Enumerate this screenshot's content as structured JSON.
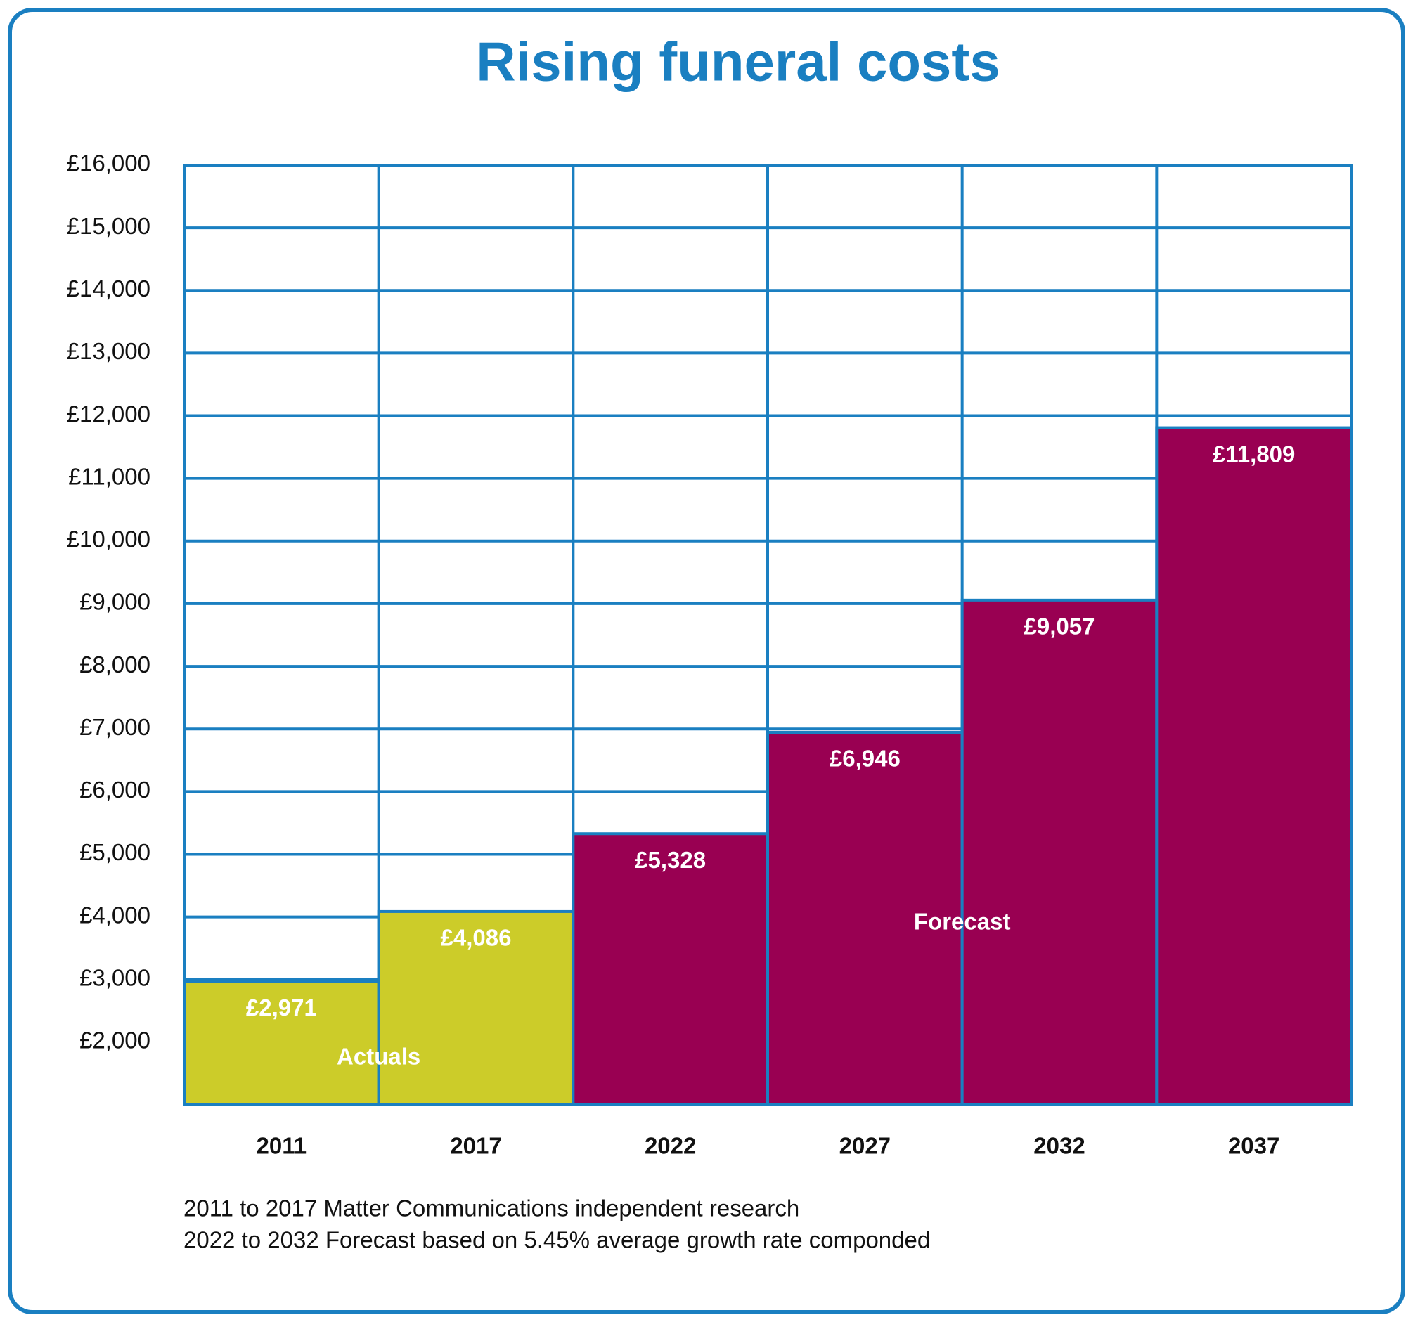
{
  "chart_data": {
    "type": "bar",
    "title": "Rising funeral costs",
    "categories": [
      "2011",
      "2017",
      "2022",
      "2027",
      "2032",
      "2037"
    ],
    "series": [
      {
        "name": "Actuals",
        "color": "#cccc29",
        "values": [
          2971,
          4086,
          null,
          null,
          null,
          null
        ],
        "value_labels": [
          "£2,971",
          "£4,086",
          null,
          null,
          null,
          null
        ]
      },
      {
        "name": "Forecast",
        "color": "#990052",
        "values": [
          null,
          null,
          5328,
          6946,
          9057,
          11809
        ],
        "value_labels": [
          null,
          null,
          "£5,328",
          "£6,946",
          "£9,057",
          "£11,809"
        ]
      }
    ],
    "ylim": [
      1000,
      16000
    ],
    "yticks": [
      {
        "value": 2000,
        "label": "£2,000"
      },
      {
        "value": 3000,
        "label": "£3,000"
      },
      {
        "value": 4000,
        "label": "£4,000"
      },
      {
        "value": 5000,
        "label": "£5,000"
      },
      {
        "value": 6000,
        "label": "£6,000"
      },
      {
        "value": 7000,
        "label": "£7,000"
      },
      {
        "value": 8000,
        "label": "£8,000"
      },
      {
        "value": 9000,
        "label": "£9,000"
      },
      {
        "value": 10000,
        "label": "£10,000"
      },
      {
        "value": 11000,
        "label": "£11,000"
      },
      {
        "value": 12000,
        "label": "£12,000"
      },
      {
        "value": 13000,
        "label": "£13,000"
      },
      {
        "value": 14000,
        "label": "£14,000"
      },
      {
        "value": 15000,
        "label": "£15,000"
      },
      {
        "value": 16000,
        "label": "£16,000"
      }
    ],
    "grid": true,
    "notes": [
      "2011 to 2017 Matter Communications independent research",
      "2022 to 2032 Forecast based on 5.45% average growth rate componded"
    ]
  }
}
